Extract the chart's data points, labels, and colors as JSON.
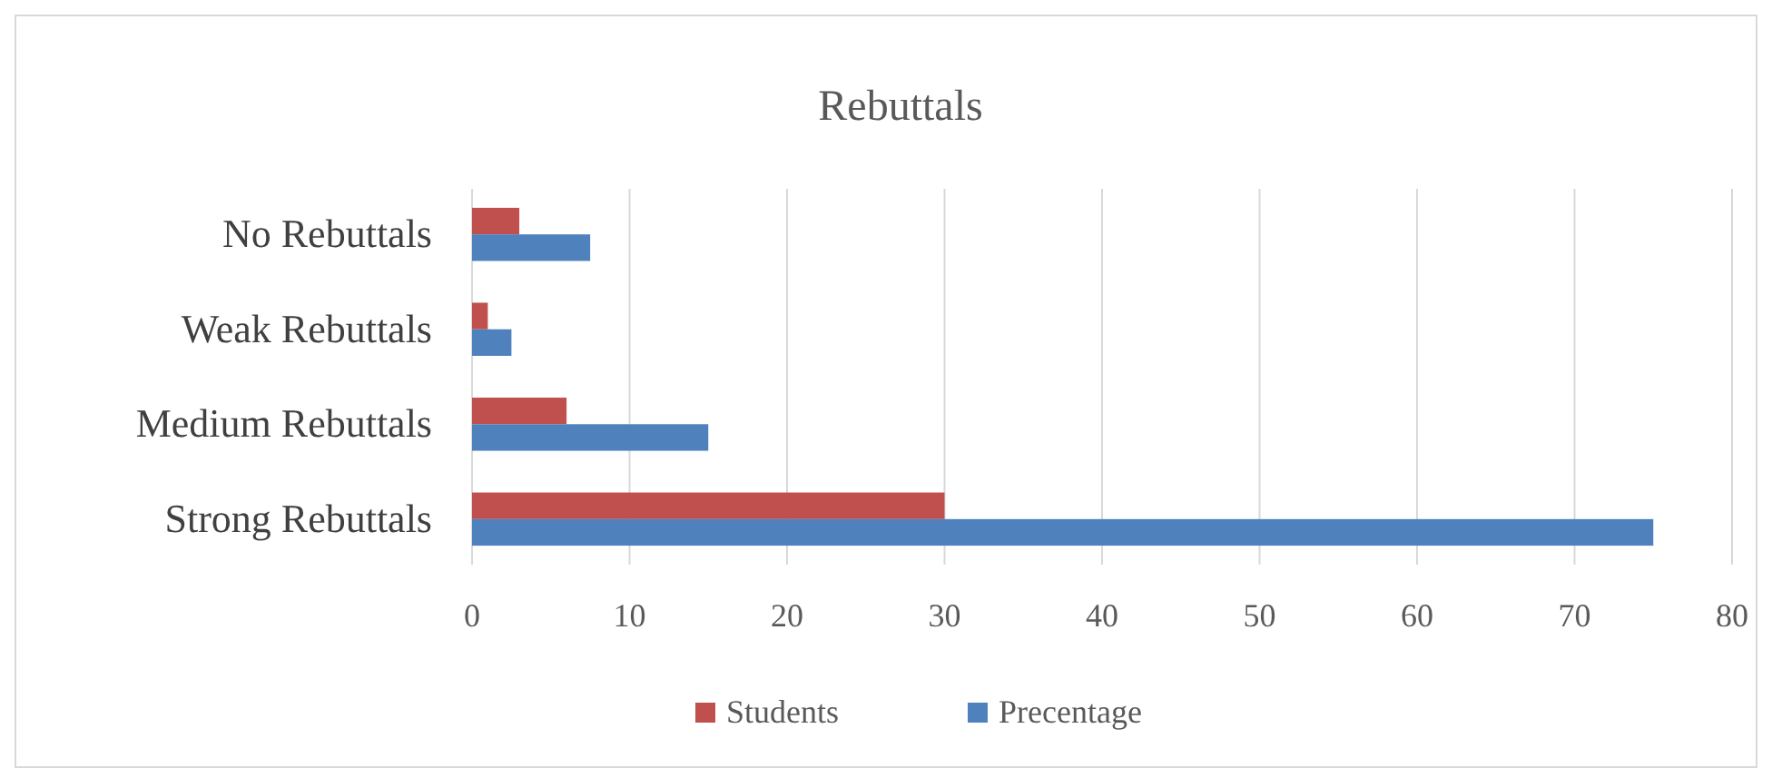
{
  "chart_data": {
    "type": "bar",
    "orientation": "horizontal",
    "title": "Rebuttals",
    "categories": [
      "No Rebuttals",
      "Weak Rebuttals",
      "Medium Rebuttals",
      "Strong Rebuttals"
    ],
    "series": [
      {
        "name": "Students",
        "color": "#c0504d",
        "values": [
          3,
          1,
          6,
          30
        ]
      },
      {
        "name": "Precentage",
        "color": "#4f81bd",
        "values": [
          7.5,
          2.5,
          15,
          75
        ]
      }
    ],
    "xlim": [
      0,
      80
    ],
    "xticks": [
      0,
      10,
      20,
      30,
      40,
      50,
      60,
      70,
      80
    ],
    "grid": "x",
    "legend": "bottom"
  }
}
